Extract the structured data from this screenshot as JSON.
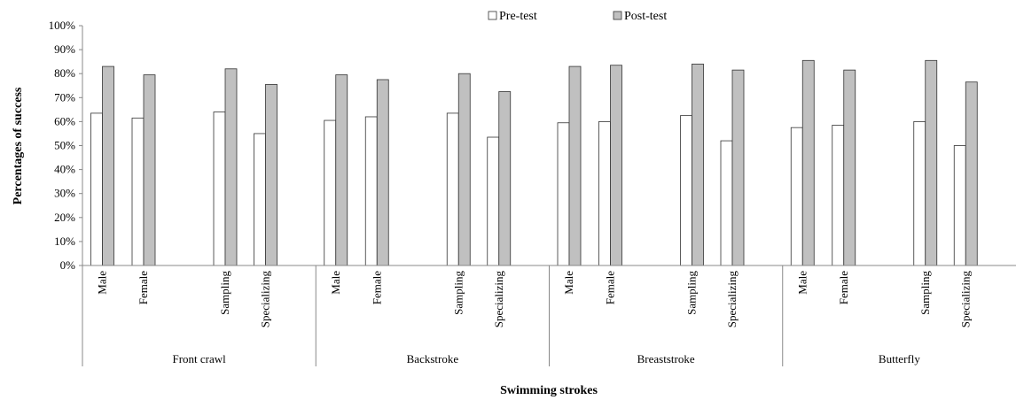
{
  "chart_data": {
    "type": "bar",
    "xlabel": "Swimming strokes",
    "ylabel": "Percentages of success",
    "ylim": [
      0,
      100
    ],
    "yticks": [
      "0%",
      "10%",
      "20%",
      "30%",
      "40%",
      "50%",
      "60%",
      "70%",
      "80%",
      "90%",
      "100%"
    ],
    "groups": [
      {
        "name": "Front crawl",
        "categories": [
          "Male",
          "Female",
          "Sampling",
          "Specializing"
        ]
      },
      {
        "name": "Backstroke",
        "categories": [
          "Male",
          "Female",
          "Sampling",
          "Specializing"
        ]
      },
      {
        "name": "Breaststroke",
        "categories": [
          "Male",
          "Female",
          "Sampling",
          "Specializing"
        ]
      },
      {
        "name": "Butterfly",
        "categories": [
          "Male",
          "Female",
          "Sampling",
          "Specializing"
        ]
      }
    ],
    "series": [
      {
        "name": "Pre-test",
        "color": "#ffffff",
        "values": [
          63.5,
          61.5,
          64,
          55,
          60.5,
          62,
          63.5,
          53.5,
          59.5,
          60,
          62.5,
          52,
          57.5,
          58.5,
          60,
          50
        ]
      },
      {
        "name": "Post-test",
        "color": "#c0c0c0",
        "values": [
          83,
          79.5,
          82,
          75.5,
          79.5,
          77.5,
          80,
          72.5,
          83,
          83.5,
          84,
          81.5,
          85.5,
          81.5,
          85.5,
          76.5
        ]
      }
    ],
    "grid": false,
    "legend_position": "top"
  }
}
